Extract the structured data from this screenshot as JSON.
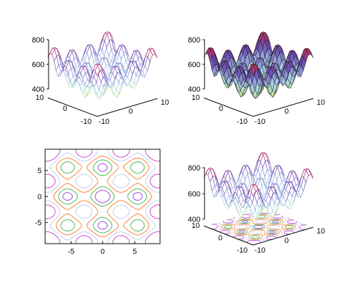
{
  "chart_data": [
    {
      "panel": "top-left",
      "type": "surface",
      "style": "wireframe mesh",
      "z_ticks": [
        "800",
        "600",
        "400"
      ],
      "y_ticks": [
        "10",
        "0",
        "-10"
      ],
      "x_ticks": [
        "-10",
        "0",
        "10"
      ],
      "xlim": [
        -10,
        10
      ],
      "ylim": [
        -10,
        10
      ],
      "zlim": [
        400,
        800
      ],
      "grid": false,
      "legend": "none",
      "colormap": [
        "#f0a020",
        "#b8e8b0",
        "#a8c8f0",
        "#6a4ab0",
        "#c03060"
      ]
    },
    {
      "panel": "top-right",
      "type": "surface",
      "style": "filled surface with black mesh",
      "z_ticks": [
        "800",
        "600",
        "400"
      ],
      "y_ticks": [
        "10",
        "0",
        "-10"
      ],
      "x_ticks": [
        "-10",
        "0",
        "10"
      ],
      "xlim": [
        -10,
        10
      ],
      "ylim": [
        -10,
        10
      ],
      "zlim": [
        400,
        800
      ],
      "grid": false,
      "legend": "none"
    },
    {
      "panel": "bottom-left",
      "type": "contour",
      "x_ticks": [
        "-5",
        "0",
        "5"
      ],
      "y_ticks": [
        "5",
        "0",
        "-5"
      ],
      "xlim": [
        -9,
        9
      ],
      "ylim": [
        -9,
        9
      ],
      "grid": false,
      "legend": "none",
      "level_colors": [
        "#8a2be2",
        "#33aa33",
        "#ff6a10",
        "#b0c8f0",
        "#c030c0"
      ]
    },
    {
      "panel": "bottom-right",
      "type": "surface",
      "style": "wireframe mesh with contour projection on floor",
      "z_ticks": [
        "800",
        "600",
        "400"
      ],
      "y_ticks": [
        "10",
        "0",
        "-10"
      ],
      "x_ticks": [
        "-10",
        "0",
        "10"
      ],
      "xlim": [
        -10,
        10
      ],
      "ylim": [
        -10,
        10
      ],
      "zlim": [
        400,
        800
      ],
      "grid": false,
      "legend": "none"
    }
  ]
}
